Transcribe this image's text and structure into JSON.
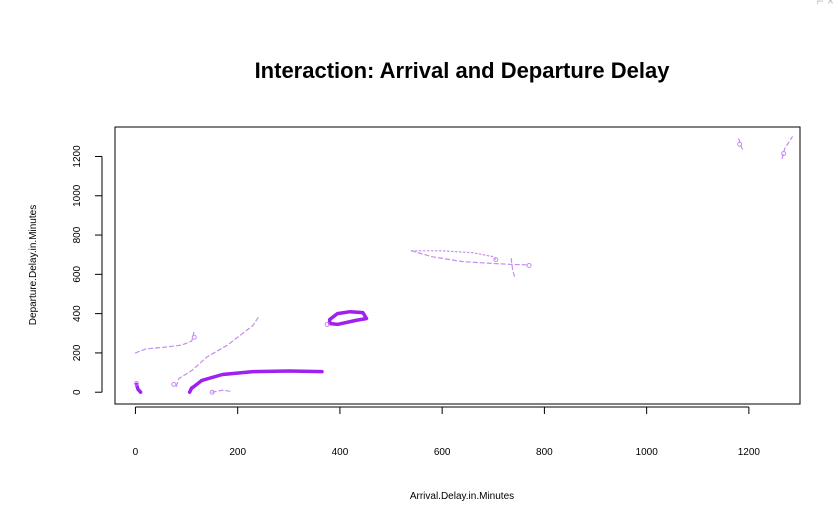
{
  "chart_data": {
    "type": "line",
    "title": "Interaction: Arrival and Departure Delay",
    "xlabel": "Arrival.Delay.in.Minutes",
    "ylabel": "Departure.Delay.in.Minutes",
    "xlim": [
      -40,
      1300
    ],
    "ylim": [
      -60,
      1350
    ],
    "xticks": [
      0,
      200,
      400,
      600,
      800,
      1000,
      1200
    ],
    "yticks": [
      0,
      200,
      400,
      600,
      800,
      1000,
      1200
    ],
    "grid": false,
    "legend": "none",
    "series": [
      {
        "color": "#a020f0",
        "width": 3.5,
        "dash": "",
        "points": [
          [
            110,
            20
          ],
          [
            130,
            60
          ],
          [
            170,
            90
          ],
          [
            230,
            105
          ],
          [
            300,
            108
          ],
          [
            365,
            105
          ]
        ]
      },
      {
        "color": "#a020f0",
        "width": 3.5,
        "dash": "",
        "points": [
          [
            106,
            0
          ],
          [
            110,
            22
          ]
        ]
      },
      {
        "color": "#a020f0",
        "width": 3.5,
        "dash": "",
        "points": [
          [
            2,
            40
          ],
          [
            5,
            15
          ],
          [
            10,
            0
          ]
        ]
      },
      {
        "color": "#a020f0",
        "width": 3.5,
        "dash": "",
        "points": [
          [
            380,
            350
          ],
          [
            380,
            370
          ],
          [
            395,
            400
          ],
          [
            420,
            410
          ],
          [
            445,
            405
          ],
          [
            452,
            375
          ],
          [
            430,
            365
          ],
          [
            395,
            345
          ],
          [
            380,
            350
          ]
        ]
      },
      {
        "color": "#c58cf2",
        "width": 1.2,
        "dash": "4,3",
        "points": [
          [
            0,
            200
          ],
          [
            20,
            220
          ],
          [
            60,
            230
          ],
          [
            90,
            240
          ],
          [
            110,
            260
          ],
          [
            115,
            310
          ]
        ]
      },
      {
        "color": "#c58cf2",
        "width": 1.2,
        "dash": "4,3",
        "points": [
          [
            80,
            30
          ],
          [
            85,
            70
          ],
          [
            110,
            110
          ],
          [
            140,
            180
          ],
          [
            180,
            240
          ],
          [
            210,
            300
          ],
          [
            230,
            340
          ],
          [
            240,
            380
          ]
        ]
      },
      {
        "color": "#c58cf2",
        "width": 1.2,
        "dash": "4,3",
        "points": [
          [
            150,
            0
          ],
          [
            170,
            10
          ],
          [
            185,
            5
          ]
        ]
      },
      {
        "color": "#c58cf2",
        "width": 1.2,
        "dash": "4,3",
        "points": [
          [
            540,
            720
          ],
          [
            580,
            690
          ],
          [
            640,
            665
          ],
          [
            700,
            655
          ],
          [
            740,
            650
          ],
          [
            770,
            648
          ]
        ]
      },
      {
        "color": "#c58cf2",
        "width": 1.2,
        "dash": "1.5,2.5",
        "points": [
          [
            540,
            720
          ],
          [
            600,
            720
          ],
          [
            660,
            710
          ],
          [
            700,
            690
          ],
          [
            705,
            675
          ]
        ]
      },
      {
        "color": "#c58cf2",
        "width": 1.2,
        "dash": "4,3",
        "points": [
          [
            735,
            680
          ],
          [
            738,
            620
          ],
          [
            742,
            585
          ]
        ]
      },
      {
        "color": "#c58cf2",
        "width": 1.2,
        "dash": "4,3",
        "points": [
          [
            1180,
            1290
          ],
          [
            1185,
            1250
          ],
          [
            1190,
            1225
          ]
        ]
      },
      {
        "color": "#c58cf2",
        "width": 1.2,
        "dash": "4,3",
        "points": [
          [
            1265,
            1190
          ],
          [
            1270,
            1240
          ],
          [
            1285,
            1300
          ]
        ]
      }
    ],
    "markers": [
      {
        "color": "#c58cf2",
        "points": [
          [
            115,
            280
          ],
          [
            75,
            40
          ],
          [
            705,
            675
          ],
          [
            770,
            645
          ],
          [
            1182,
            1262
          ],
          [
            1268,
            1215
          ],
          [
            375,
            345
          ],
          [
            2,
            45
          ],
          [
            150,
            0
          ]
        ]
      }
    ]
  }
}
